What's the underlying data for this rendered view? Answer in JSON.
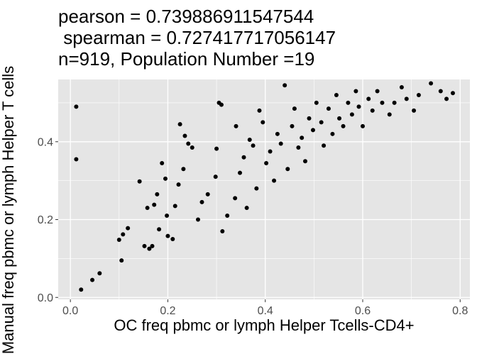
{
  "chart_data": {
    "type": "scatter",
    "title_lines": [
      "pearson = 0.739886911547544",
      " spearman = 0.727417717056147",
      "n=919, Population Number =19"
    ],
    "xlabel": "OC freq pbmc or lymph Helper Tcells-CD4+",
    "ylabel": "Manual freq pbmc or lymph Helper T cells",
    "xlim": [
      -0.025,
      0.82
    ],
    "ylim": [
      -0.005,
      0.56
    ],
    "x_ticks": [
      "0.0",
      "0.2",
      "0.4",
      "0.6",
      "0.8"
    ],
    "y_ticks": [
      "0.0",
      "0.2",
      "0.4"
    ],
    "grid": true,
    "colors": {
      "panel": "#e5e5e5",
      "grid": "#ffffff",
      "point": "#000000",
      "tick_text": "#4d4d4d"
    },
    "points": [
      [
        0.012,
        0.49
      ],
      [
        0.012,
        0.355
      ],
      [
        0.022,
        0.02
      ],
      [
        0.045,
        0.045
      ],
      [
        0.06,
        0.062
      ],
      [
        0.1,
        0.148
      ],
      [
        0.105,
        0.095
      ],
      [
        0.108,
        0.162
      ],
      [
        0.118,
        0.178
      ],
      [
        0.142,
        0.298
      ],
      [
        0.152,
        0.132
      ],
      [
        0.158,
        0.23
      ],
      [
        0.162,
        0.125
      ],
      [
        0.168,
        0.132
      ],
      [
        0.172,
        0.238
      ],
      [
        0.178,
        0.265
      ],
      [
        0.182,
        0.175
      ],
      [
        0.188,
        0.345
      ],
      [
        0.195,
        0.305
      ],
      [
        0.198,
        0.21
      ],
      [
        0.2,
        0.158
      ],
      [
        0.21,
        0.15
      ],
      [
        0.215,
        0.235
      ],
      [
        0.222,
        0.29
      ],
      [
        0.225,
        0.445
      ],
      [
        0.232,
        0.33
      ],
      [
        0.235,
        0.415
      ],
      [
        0.242,
        0.395
      ],
      [
        0.25,
        0.385
      ],
      [
        0.262,
        0.2
      ],
      [
        0.27,
        0.245
      ],
      [
        0.282,
        0.265
      ],
      [
        0.298,
        0.31
      ],
      [
        0.3,
        0.382
      ],
      [
        0.305,
        0.5
      ],
      [
        0.31,
        0.495
      ],
      [
        0.312,
        0.17
      ],
      [
        0.322,
        0.21
      ],
      [
        0.338,
        0.255
      ],
      [
        0.34,
        0.44
      ],
      [
        0.348,
        0.32
      ],
      [
        0.356,
        0.36
      ],
      [
        0.362,
        0.23
      ],
      [
        0.368,
        0.405
      ],
      [
        0.375,
        0.39
      ],
      [
        0.382,
        0.28
      ],
      [
        0.388,
        0.48
      ],
      [
        0.395,
        0.45
      ],
      [
        0.402,
        0.345
      ],
      [
        0.41,
        0.375
      ],
      [
        0.418,
        0.3
      ],
      [
        0.425,
        0.42
      ],
      [
        0.432,
        0.395
      ],
      [
        0.44,
        0.545
      ],
      [
        0.446,
        0.33
      ],
      [
        0.455,
        0.44
      ],
      [
        0.46,
        0.485
      ],
      [
        0.468,
        0.385
      ],
      [
        0.475,
        0.41
      ],
      [
        0.482,
        0.35
      ],
      [
        0.49,
        0.46
      ],
      [
        0.498,
        0.43
      ],
      [
        0.505,
        0.5
      ],
      [
        0.515,
        0.45
      ],
      [
        0.52,
        0.39
      ],
      [
        0.53,
        0.485
      ],
      [
        0.538,
        0.42
      ],
      [
        0.546,
        0.52
      ],
      [
        0.552,
        0.46
      ],
      [
        0.56,
        0.44
      ],
      [
        0.57,
        0.5
      ],
      [
        0.578,
        0.47
      ],
      [
        0.586,
        0.53
      ],
      [
        0.592,
        0.49
      ],
      [
        0.6,
        0.44
      ],
      [
        0.612,
        0.51
      ],
      [
        0.62,
        0.48
      ],
      [
        0.63,
        0.53
      ],
      [
        0.64,
        0.5
      ],
      [
        0.655,
        0.47
      ],
      [
        0.665,
        0.5
      ],
      [
        0.68,
        0.54
      ],
      [
        0.69,
        0.51
      ],
      [
        0.705,
        0.48
      ],
      [
        0.715,
        0.52
      ],
      [
        0.74,
        0.55
      ],
      [
        0.76,
        0.53
      ],
      [
        0.772,
        0.51
      ],
      [
        0.785,
        0.525
      ]
    ]
  }
}
